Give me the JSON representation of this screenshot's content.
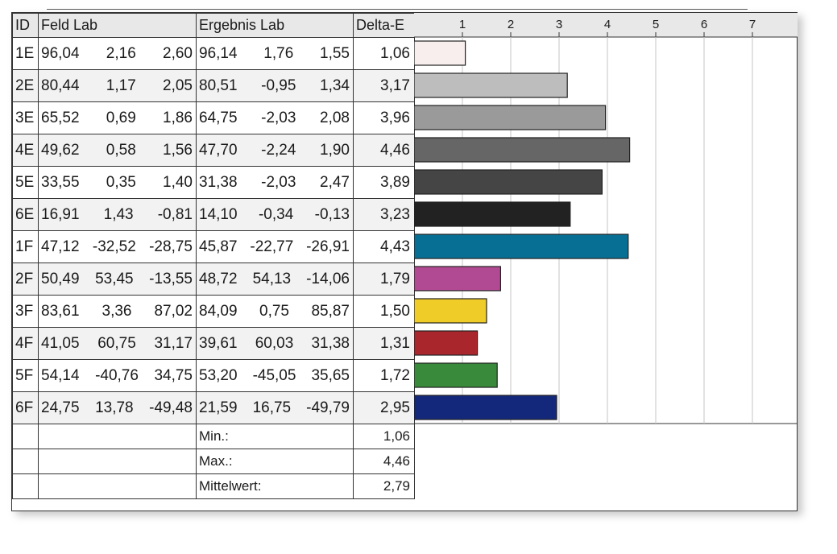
{
  "table": {
    "headers": {
      "id": "ID",
      "feld": "Feld Lab",
      "ergebnis": "Ergebnis Lab",
      "delta": "Delta-E"
    },
    "rows": [
      {
        "id": "1E",
        "feld": [
          "96,04",
          "2,16",
          "2,60"
        ],
        "ergebnis": [
          "96,14",
          "1,76",
          "1,55"
        ],
        "delta": "1,06"
      },
      {
        "id": "2E",
        "feld": [
          "80,44",
          "1,17",
          "2,05"
        ],
        "ergebnis": [
          "80,51",
          "-0,95",
          "1,34"
        ],
        "delta": "3,17"
      },
      {
        "id": "3E",
        "feld": [
          "65,52",
          "0,69",
          "1,86"
        ],
        "ergebnis": [
          "64,75",
          "-2,03",
          "2,08"
        ],
        "delta": "3,96"
      },
      {
        "id": "4E",
        "feld": [
          "49,62",
          "0,58",
          "1,56"
        ],
        "ergebnis": [
          "47,70",
          "-2,24",
          "1,90"
        ],
        "delta": "4,46"
      },
      {
        "id": "5E",
        "feld": [
          "33,55",
          "0,35",
          "1,40"
        ],
        "ergebnis": [
          "31,38",
          "-2,03",
          "2,47"
        ],
        "delta": "3,89"
      },
      {
        "id": "6E",
        "feld": [
          "16,91",
          "1,43",
          "-0,81"
        ],
        "ergebnis": [
          "14,10",
          "-0,34",
          "-0,13"
        ],
        "delta": "3,23"
      },
      {
        "id": "1F",
        "feld": [
          "47,12",
          "-32,52",
          "-28,75"
        ],
        "ergebnis": [
          "45,87",
          "-22,77",
          "-26,91"
        ],
        "delta": "4,43"
      },
      {
        "id": "2F",
        "feld": [
          "50,49",
          "53,45",
          "-13,55"
        ],
        "ergebnis": [
          "48,72",
          "54,13",
          "-14,06"
        ],
        "delta": "1,79"
      },
      {
        "id": "3F",
        "feld": [
          "83,61",
          "3,36",
          "87,02"
        ],
        "ergebnis": [
          "84,09",
          "0,75",
          "85,87"
        ],
        "delta": "1,50"
      },
      {
        "id": "4F",
        "feld": [
          "41,05",
          "60,75",
          "31,17"
        ],
        "ergebnis": [
          "39,61",
          "60,03",
          "31,38"
        ],
        "delta": "1,31"
      },
      {
        "id": "5F",
        "feld": [
          "54,14",
          "-40,76",
          "34,75"
        ],
        "ergebnis": [
          "53,20",
          "-45,05",
          "35,65"
        ],
        "delta": "1,72"
      },
      {
        "id": "6F",
        "feld": [
          "24,75",
          "13,78",
          "-49,48"
        ],
        "ergebnis": [
          "21,59",
          "16,75",
          "-49,79"
        ],
        "delta": "2,95"
      }
    ],
    "stats": [
      {
        "label": "Min.:",
        "value": "1,06"
      },
      {
        "label": "Max.:",
        "value": "4,46"
      },
      {
        "label": "Mittelwert:",
        "value": "2,79"
      }
    ]
  },
  "chart_data": {
    "type": "bar",
    "orientation": "horizontal",
    "categories": [
      "1E",
      "2E",
      "3E",
      "4E",
      "5E",
      "6E",
      "1F",
      "2F",
      "3F",
      "4F",
      "5F",
      "6F"
    ],
    "values": [
      1.06,
      3.17,
      3.96,
      4.46,
      3.89,
      3.23,
      4.43,
      1.79,
      1.5,
      1.31,
      1.72,
      2.95
    ],
    "bar_colors": [
      "#f8eeee",
      "#bdbdbd",
      "#9a9a9a",
      "#666666",
      "#454545",
      "#222222",
      "#086f94",
      "#b24a93",
      "#efcc28",
      "#a8262c",
      "#3a8a3c",
      "#13287a"
    ],
    "x_tick_labels": [
      "1",
      "2",
      "3",
      "4",
      "5",
      "6",
      "7"
    ],
    "xlim": [
      0,
      7.8
    ],
    "grid": "vertical",
    "title": "",
    "xlabel": "",
    "ylabel": ""
  }
}
